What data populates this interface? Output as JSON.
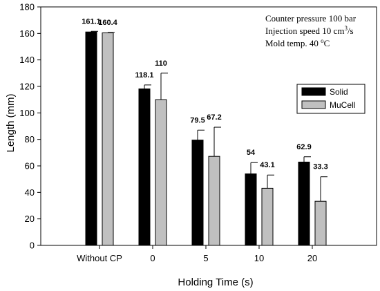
{
  "chart_data": {
    "type": "bar",
    "title": "",
    "xlabel": "Holding Time (s)",
    "ylabel": "Length (mm)",
    "ylim": [
      0,
      180
    ],
    "yticks": [
      0,
      20,
      40,
      60,
      80,
      100,
      120,
      140,
      160,
      180
    ],
    "categories": [
      "Without CP",
      "0",
      "5",
      "10",
      "20"
    ],
    "series": [
      {
        "name": "Solid",
        "color": "#000000",
        "values": [
          161.1,
          118.1,
          79.5,
          54,
          62.9
        ],
        "labels": [
          "161.1",
          "118.1",
          "79.5",
          "54",
          "62.9"
        ],
        "errors": [
          0.5,
          3,
          7.5,
          8.5,
          4
        ]
      },
      {
        "name": "MuCell",
        "color": "#c0c0c0",
        "values": [
          160.4,
          110,
          67.2,
          43.1,
          33.3
        ],
        "labels": [
          "160.4",
          "110",
          "67.2",
          "43.1",
          "33.3"
        ],
        "errors": [
          0.3,
          20,
          22,
          10,
          18.5
        ]
      }
    ],
    "legend_position": "right",
    "grid": false,
    "annotations": {
      "line1": "Counter pressure 100 bar",
      "line2_prefix": "Injection speed 10 cm",
      "line2_sup": "3",
      "line2_suffix": "/s",
      "line3_prefix": "Mold temp. 40 ",
      "line3_sup": "o",
      "line3_suffix": "C"
    }
  }
}
